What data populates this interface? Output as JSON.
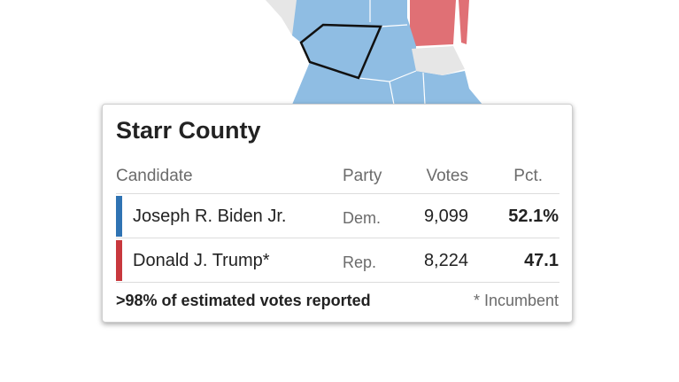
{
  "title": "Starr County",
  "table": {
    "header": [
      "Candidate",
      "Party",
      "Votes",
      "Pct."
    ],
    "rows": [
      {
        "candidate": "Joseph R. Biden Jr.",
        "party": "Dem.",
        "votes": "9,099",
        "pct": "52.1%",
        "color": "#2f73b3"
      },
      {
        "candidate": "Donald J. Trump*",
        "party": "Rep.",
        "votes": "8,224",
        "pct": "47.1",
        "color": "#c8383d"
      }
    ]
  },
  "footer": {
    "reported": ">98% of estimated votes reported",
    "note": "* Incumbent"
  }
}
